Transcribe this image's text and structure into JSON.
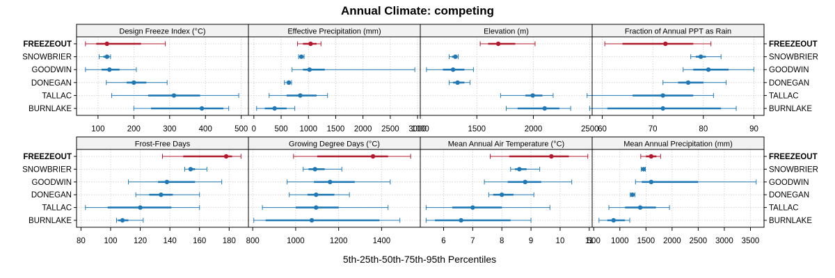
{
  "chart_data": {
    "type": "dot-whisker",
    "title": "Annual Climate: competing",
    "xlabel": "5th-25th-50th-75th-95th Percentiles",
    "ylabel": "",
    "grid": true,
    "sites": [
      "FREEZEOUT",
      "SNOWBRIER",
      "GOODWIN",
      "DONEGAN",
      "TALLAC",
      "BURNLAKE"
    ],
    "highlight_site": "FREEZEOUT",
    "colors": {
      "highlight": "#b2182b",
      "other": "#1f78b4",
      "grid": "#cccccc",
      "strip": "#f2f2f2"
    },
    "series_order": [
      "p5",
      "p25",
      "p50",
      "p75",
      "p95"
    ],
    "panels": [
      {
        "title": "Design Freeze Index (°C)",
        "xlim": [
          40,
          520
        ],
        "ticks": [
          100,
          200,
          300,
          400,
          500
        ],
        "tick_labels": [
          "100",
          "200",
          "300",
          "400",
          "500"
        ],
        "values": {
          "FREEZEOUT": [
            65,
            95,
            125,
            220,
            288
          ],
          "SNOWBRIER": [
            103,
            115,
            125,
            132,
            135
          ],
          "GOODWIN": [
            65,
            110,
            132,
            160,
            207
          ],
          "DONEGAN": [
            123,
            180,
            200,
            235,
            293
          ],
          "TALLAC": [
            138,
            240,
            312,
            385,
            493
          ],
          "BURNLAKE": [
            200,
            248,
            390,
            450,
            465
          ]
        }
      },
      {
        "title": "Effective Precipitation (mm)",
        "xlim": [
          -100,
          3050
        ],
        "ticks": [
          0,
          500,
          1000,
          1500,
          2000,
          2500,
          3000
        ],
        "tick_labels": [
          "0",
          "500",
          "1000",
          "1500",
          "2000",
          "2500",
          "3000"
        ],
        "values": {
          "FREEZEOUT": [
            800,
            900,
            1040,
            1150,
            1230
          ],
          "SNOWBRIER": [
            820,
            850,
            870,
            900,
            920
          ],
          "GOODWIN": [
            700,
            900,
            1020,
            1300,
            2950
          ],
          "DONEGAN": [
            560,
            600,
            640,
            660,
            690
          ],
          "TALLAC": [
            280,
            600,
            850,
            1150,
            1350
          ],
          "BURNLAKE": [
            50,
            200,
            380,
            600,
            750
          ]
        }
      },
      {
        "title": "Elevation (m)",
        "xlim": [
          1000,
          2520
        ],
        "ticks": [
          1000,
          1500,
          2000,
          2500
        ],
        "tick_labels": [
          "1000",
          "1500",
          "2000",
          "2500"
        ],
        "values": {
          "FREEZEOUT": [
            1530,
            1600,
            1690,
            1840,
            2015
          ],
          "SNOWBRIER": [
            1255,
            1280,
            1310,
            1320,
            1335
          ],
          "GOODWIN": [
            1055,
            1200,
            1290,
            1390,
            1470
          ],
          "DONEGAN": [
            1255,
            1290,
            1330,
            1390,
            1440
          ],
          "TALLAC": [
            1710,
            1930,
            1995,
            2080,
            2175
          ],
          "BURNLAKE": [
            1760,
            1860,
            2100,
            2230,
            2330
          ]
        }
      },
      {
        "title": "Fraction of Annual PPT as Rain",
        "xlim": [
          58,
          92
        ],
        "ticks": [
          60,
          70,
          80,
          90
        ],
        "tick_labels": [
          "60",
          "70",
          "80",
          "90"
        ],
        "values": {
          "FREEZEOUT": [
            60.5,
            64,
            72.5,
            78,
            81.5
          ],
          "SNOWBRIER": [
            77.5,
            78.5,
            79.5,
            80.5,
            83.5
          ],
          "GOODWIN": [
            76,
            78,
            81,
            85,
            90
          ],
          "DONEGAN": [
            72,
            75,
            77,
            80,
            84.5
          ],
          "TALLAC": [
            57,
            66,
            72,
            78,
            82
          ],
          "BURNLAKE": [
            57.5,
            61,
            72,
            83.5,
            86.5
          ]
        }
      },
      {
        "title": "Frost-Free Days",
        "xlim": [
          77,
          193
        ],
        "ticks": [
          80,
          100,
          120,
          140,
          160,
          180
        ],
        "tick_labels": [
          "80",
          "100",
          "120",
          "140",
          "160",
          "180"
        ],
        "values": {
          "FREEZEOUT": [
            135,
            149,
            178,
            182,
            188
          ],
          "SNOWBRIER": [
            150,
            153,
            154,
            157,
            165
          ],
          "GOODWIN": [
            112,
            132,
            138,
            157,
            175
          ],
          "DONEGAN": [
            117,
            126,
            134,
            142,
            160
          ],
          "TALLAC": [
            83,
            98,
            120,
            141,
            160
          ],
          "BURNLAKE": [
            104,
            105,
            108,
            112,
            122
          ]
        }
      },
      {
        "title": "Growing Degree Days (°C)",
        "xlim": [
          780,
          1580
        ],
        "ticks": [
          800,
          1000,
          1200,
          1400
        ],
        "tick_labels": [
          "800",
          "1000",
          "1200",
          "1400"
        ],
        "values": {
          "FREEZEOUT": [
            990,
            1100,
            1360,
            1430,
            1535
          ],
          "SNOWBRIER": [
            1035,
            1060,
            1090,
            1135,
            1215
          ],
          "GOODWIN": [
            960,
            1085,
            1160,
            1275,
            1440
          ],
          "DONEGAN": [
            970,
            1055,
            1095,
            1180,
            1250
          ],
          "TALLAC": [
            845,
            1000,
            1095,
            1200,
            1430
          ],
          "BURNLAKE": [
            805,
            860,
            1075,
            1390,
            1485
          ]
        }
      },
      {
        "title": "Mean Annual Air Temperature (°C)",
        "xlim": [
          5.2,
          11.1
        ],
        "ticks": [
          6,
          7,
          8,
          9,
          10,
          11
        ],
        "tick_labels": [
          "6",
          "7",
          "8",
          "9",
          "10",
          "11"
        ],
        "values": {
          "FREEZEOUT": [
            7.6,
            8.25,
            9.7,
            10.3,
            10.95
          ],
          "SNOWBRIER": [
            8.3,
            8.45,
            8.6,
            8.85,
            9.3
          ],
          "GOODWIN": [
            7.4,
            8.2,
            8.8,
            9.35,
            10.4
          ],
          "DONEGAN": [
            7.55,
            7.7,
            8.0,
            8.4,
            9.1
          ],
          "TALLAC": [
            5.4,
            6.3,
            7.0,
            8.0,
            9.65
          ],
          "BURNLAKE": [
            5.4,
            5.7,
            6.6,
            8.3,
            9.0
          ]
        }
      },
      {
        "title": "Mean Annual Precipitation (mm)",
        "xlim": [
          470,
          3760
        ],
        "ticks": [
          500,
          1000,
          1500,
          2000,
          2500,
          3000,
          3500
        ],
        "tick_labels": [
          "500",
          "1000",
          "1500",
          "2000",
          "2500",
          "3000",
          "3500"
        ],
        "values": {
          "FREEZEOUT": [
            1400,
            1500,
            1600,
            1700,
            1780
          ],
          "SNOWBRIER": [
            1410,
            1430,
            1455,
            1470,
            1490
          ],
          "GOODWIN": [
            1300,
            1420,
            1600,
            2500,
            3610
          ],
          "DONEGAN": [
            1200,
            1220,
            1240,
            1260,
            1290
          ],
          "TALLAC": [
            790,
            1100,
            1390,
            1690,
            1950
          ],
          "BURNLAKE": [
            600,
            760,
            880,
            1100,
            1190
          ]
        }
      }
    ]
  }
}
